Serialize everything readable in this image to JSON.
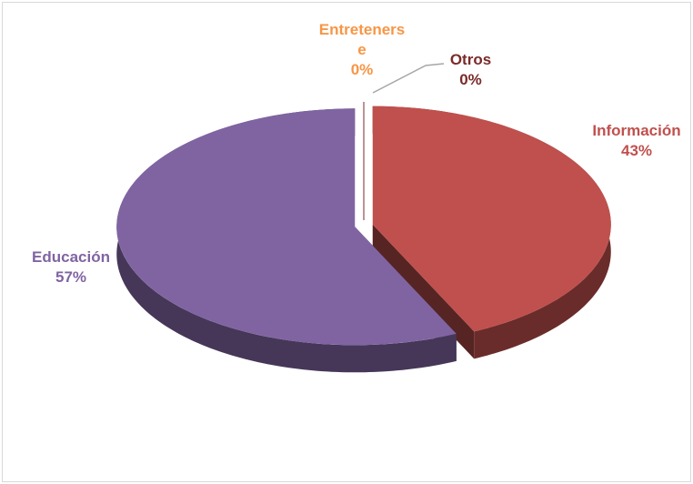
{
  "chart_data": {
    "type": "pie",
    "categories": [
      "Información",
      "Educación",
      "Entretenerse",
      "Otros"
    ],
    "values": [
      43,
      57,
      0,
      0
    ],
    "value_labels": [
      "43%",
      "57%",
      "0%",
      "0%"
    ],
    "colors": [
      "#c0504d",
      "#8064a2",
      "#f79646",
      "#7b2a2a"
    ]
  }
}
